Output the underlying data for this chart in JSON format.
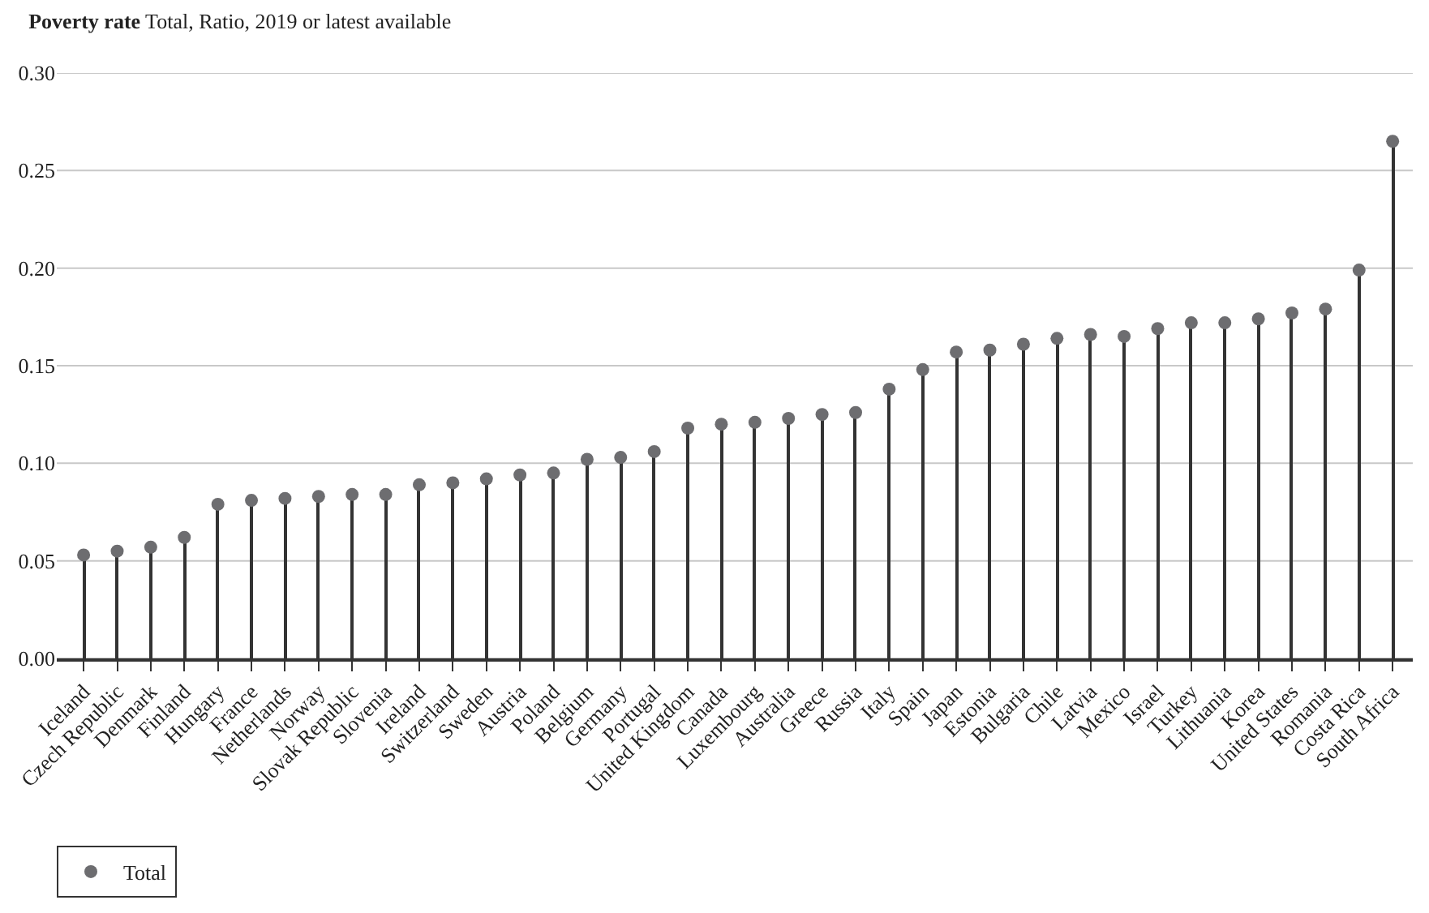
{
  "chart_data": {
    "type": "lollipop",
    "title": "Poverty rate",
    "subtitle": "Total, Ratio, 2019 or latest available",
    "categories": [
      "Iceland",
      "Czech Republic",
      "Denmark",
      "Finland",
      "Hungary",
      "France",
      "Netherlands",
      "Norway",
      "Slovak Republic",
      "Slovenia",
      "Ireland",
      "Switzerland",
      "Sweden",
      "Austria",
      "Poland",
      "Belgium",
      "Germany",
      "Portugal",
      "United Kingdom",
      "Canada",
      "Luxembourg",
      "Australia",
      "Greece",
      "Russia",
      "Italy",
      "Spain",
      "Japan",
      "Estonia",
      "Bulgaria",
      "Chile",
      "Latvia",
      "Mexico",
      "Israel",
      "Turkey",
      "Lithuania",
      "Korea",
      "United States",
      "Romania",
      "Costa Rica",
      "South Africa"
    ],
    "series": [
      {
        "name": "Total",
        "color": "#6d6d70",
        "values": [
          0.053,
          0.055,
          0.057,
          0.062,
          0.079,
          0.081,
          0.082,
          0.083,
          0.084,
          0.084,
          0.089,
          0.09,
          0.092,
          0.094,
          0.095,
          0.102,
          0.103,
          0.106,
          0.118,
          0.12,
          0.121,
          0.123,
          0.125,
          0.126,
          0.138,
          0.148,
          0.157,
          0.158,
          0.161,
          0.164,
          0.166,
          0.165,
          0.169,
          0.172,
          0.172,
          0.174,
          0.177,
          0.179,
          0.199,
          0.265
        ]
      }
    ],
    "ylim": [
      0,
      0.3
    ],
    "yticks": [
      {
        "value": 0,
        "label": "0.00"
      },
      0.05,
      {
        "value": 0.1,
        "label": "0.10"
      },
      0.15,
      {
        "value": 0.2,
        "label": "0.20"
      },
      0.25,
      {
        "value": 0.3,
        "label": "0.30"
      }
    ],
    "grid": "y",
    "legend": "bottom left",
    "marker": "circle"
  }
}
